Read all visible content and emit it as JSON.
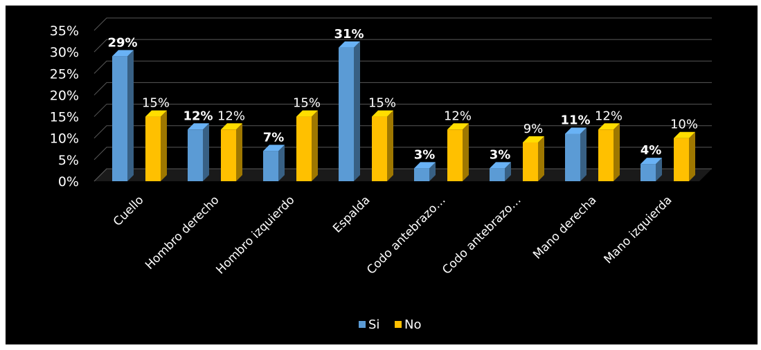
{
  "chart_data": {
    "type": "bar",
    "categories": [
      "Cuello",
      "Hombro derecho",
      "Hombro izquierdo",
      "Espalda",
      "Codo  antebrazo…",
      "Codo  antebrazo…",
      "Mano derecha",
      "Mano izquierda"
    ],
    "series": [
      {
        "name": "Si",
        "values": [
          29,
          12,
          7,
          31,
          3,
          3,
          11,
          4
        ],
        "labels": [
          "29%",
          "12%",
          "7%",
          "31%",
          "3%",
          "3%",
          "11%",
          "4%"
        ],
        "color": "#5B9BD5"
      },
      {
        "name": "No",
        "values": [
          15,
          12,
          15,
          15,
          12,
          9,
          12,
          10
        ],
        "labels": [
          "15%",
          "12%",
          "15%",
          "15%",
          "12%",
          "9%",
          "12%",
          "10%"
        ],
        "color": "#FFC000"
      }
    ],
    "yticks": [
      "0%",
      "5%",
      "10%",
      "15%",
      "20%",
      "25%",
      "30%",
      "35%"
    ],
    "ylim": [
      0,
      35
    ],
    "grid": true,
    "legend_position": "bottom",
    "background": "#000000"
  }
}
